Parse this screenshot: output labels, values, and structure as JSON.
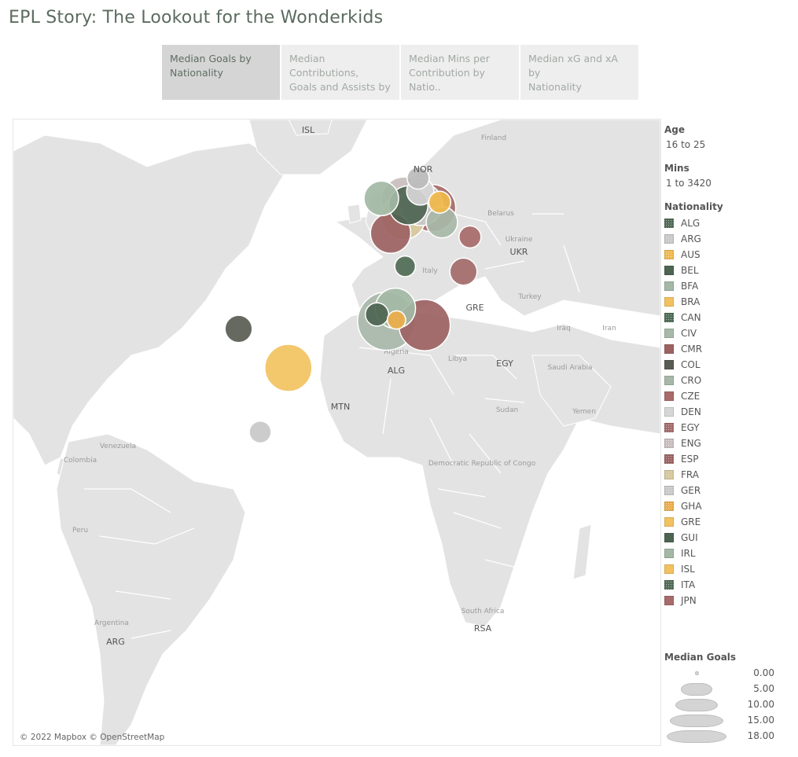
{
  "title": "EPL Story: The Lookout for the Wonderkids",
  "tabs": [
    {
      "label": "Median Goals by\nNationality",
      "active": true
    },
    {
      "label": "Median Contributions,\nGoals and Assists by ..",
      "active": false
    },
    {
      "label": "Median Mins per\nContribution by Natio..",
      "active": false
    },
    {
      "label": "Median xG and xA by\nNationality",
      "active": false
    }
  ],
  "filters": {
    "age_label": "Age",
    "age_value": "16 to 25",
    "mins_label": "Mins",
    "mins_value": "1 to 3420"
  },
  "nationality_legend": {
    "title": "Nationality",
    "items": [
      {
        "code": "ALG",
        "color": "#4f6b55",
        "pattern": "dots"
      },
      {
        "code": "ARG",
        "color": "#c8c8c8",
        "pattern": "dots"
      },
      {
        "code": "AUS",
        "color": "#f0b849",
        "pattern": "dots"
      },
      {
        "code": "BEL",
        "color": "#4d6451",
        "pattern": "solid"
      },
      {
        "code": "BFA",
        "color": "#a3b8a5",
        "pattern": "solid"
      },
      {
        "code": "BRA",
        "color": "#f2c260",
        "pattern": "solid"
      },
      {
        "code": "CAN",
        "color": "#4f6b55",
        "pattern": "dots"
      },
      {
        "code": "CIV",
        "color": "#a8b9a9",
        "pattern": "solid"
      },
      {
        "code": "CMR",
        "color": "#9c6262",
        "pattern": "solid"
      },
      {
        "code": "COL",
        "color": "#585c52",
        "pattern": "solid"
      },
      {
        "code": "CRO",
        "color": "#a7b8a8",
        "pattern": "solid"
      },
      {
        "code": "CZE",
        "color": "#a86a6a",
        "pattern": "solid"
      },
      {
        "code": "DEN",
        "color": "#d6d6d6",
        "pattern": "solid"
      },
      {
        "code": "EGY",
        "color": "#a36a6a",
        "pattern": "dots"
      },
      {
        "code": "ENG",
        "color": "#c9bdbd",
        "pattern": "dots"
      },
      {
        "code": "ESP",
        "color": "#9c6262",
        "pattern": "dots"
      },
      {
        "code": "FRA",
        "color": "#d6c79a",
        "pattern": "dots"
      },
      {
        "code": "GER",
        "color": "#c8c8c8",
        "pattern": "dots"
      },
      {
        "code": "GHA",
        "color": "#ecac49",
        "pattern": "dots"
      },
      {
        "code": "GRE",
        "color": "#f2c260",
        "pattern": "solid"
      },
      {
        "code": "GUI",
        "color": "#4d6451",
        "pattern": "solid"
      },
      {
        "code": "IRL",
        "color": "#a3b8a5",
        "pattern": "solid"
      },
      {
        "code": "ISL",
        "color": "#f2c260",
        "pattern": "solid"
      },
      {
        "code": "ITA",
        "color": "#4f6b55",
        "pattern": "dots"
      },
      {
        "code": "JPN",
        "color": "#a86a6a",
        "pattern": "solid"
      }
    ]
  },
  "size_legend": {
    "title": "Median Goals",
    "values": [
      "0.00",
      "5.00",
      "10.00",
      "15.00",
      "18.00"
    ]
  },
  "map": {
    "attribution": "© 2022 Mapbox © OpenStreetMap",
    "country_labels": [
      "ISL",
      "NOR",
      "UKR",
      "GRE",
      "ALG",
      "EGY",
      "MTN",
      "ARG",
      "RSA"
    ],
    "geo_labels": [
      "Finland",
      "Belarus",
      "Ukraine",
      "Italy",
      "Iraq",
      "Iran",
      "Libya",
      "Saudi Arabia",
      "Sudan",
      "Yemen",
      "Democratic Republic of Congo",
      "Venezuela",
      "Peru",
      "Argentina",
      "South Africa",
      "Turkey",
      "Algeria",
      "Colombia"
    ]
  },
  "chart_data": {
    "type": "scatter",
    "title": "Median Goals by Nationality",
    "size_measure": "Median Goals",
    "size_range": [
      0,
      18
    ],
    "points": [
      {
        "nationality": "BRA",
        "lon": -51,
        "lat": -10,
        "median_goals": 9
      },
      {
        "nationality": "ESP",
        "lon": -3.7,
        "lat": 40.4,
        "median_goals": 6
      },
      {
        "nationality": "FRA",
        "lon": 2.2,
        "lat": 46.2,
        "median_goals": 7.5
      },
      {
        "nationality": "BEL",
        "lon": 4.5,
        "lat": 50.8,
        "median_goals": 5.5
      },
      {
        "nationality": "ENG",
        "lon": 2.5,
        "lat": 53,
        "median_goals": 8
      },
      {
        "nationality": "GER",
        "lon": 10.4,
        "lat": 51.2,
        "median_goals": 7
      },
      {
        "nationality": "CZE",
        "lon": 15.5,
        "lat": 49.8,
        "median_goals": 9
      },
      {
        "nationality": "IRL",
        "lon": -8,
        "lat": 53.4,
        "median_goals": 4
      },
      {
        "nationality": "DEN",
        "lon": 10,
        "lat": 56,
        "median_goals": 2
      },
      {
        "nationality": "AUS",
        "lon": 19,
        "lat": 52,
        "median_goals": 1
      },
      {
        "nationality": "NOR",
        "lon": 9,
        "lat": 61,
        "median_goals": 1
      },
      {
        "nationality": "CRO",
        "lon": 20,
        "lat": 44.5,
        "median_goals": 3
      },
      {
        "nationality": "JPN",
        "lon": 33,
        "lat": 39,
        "median_goals": 1
      },
      {
        "nationality": "ALG",
        "lon": 3,
        "lat": 28,
        "median_goals": 0.8
      },
      {
        "nationality": "EGY",
        "lon": 30,
        "lat": 26,
        "median_goals": 2
      },
      {
        "nationality": "GUI",
        "lon": -10,
        "lat": 10,
        "median_goals": 1.2
      },
      {
        "nationality": "CIV",
        "lon": -5.5,
        "lat": 7.5,
        "median_goals": 15
      },
      {
        "nationality": "BFA",
        "lon": -1.5,
        "lat": 12.3,
        "median_goals": 6
      },
      {
        "nationality": "GHA",
        "lon": -1,
        "lat": 7.9,
        "median_goals": 0.5
      },
      {
        "nationality": "CMR",
        "lon": 12,
        "lat": 6,
        "median_goals": 11
      },
      {
        "nationality": "COL",
        "lon": -74,
        "lat": 4.6,
        "median_goals": 2
      },
      {
        "nationality": "ARG",
        "lon": -64,
        "lat": -34,
        "median_goals": 1
      }
    ]
  }
}
